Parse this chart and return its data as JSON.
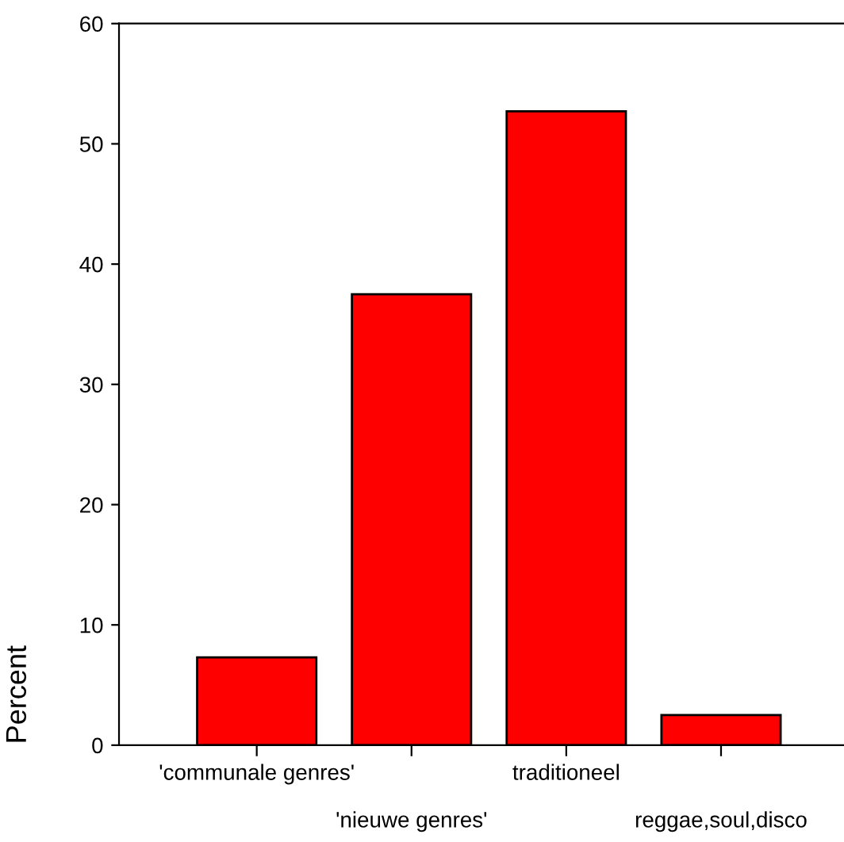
{
  "chart_data": {
    "type": "bar",
    "categories": [
      "'communale genres'",
      "'nieuwe genres'",
      "traditioneel",
      "reggae,soul,disco"
    ],
    "values": [
      7.3,
      37.5,
      52.7,
      2.5
    ],
    "color": "#ff0000",
    "ylim": [
      0,
      60
    ],
    "yticks": [
      0,
      10,
      20,
      30,
      40,
      50,
      60
    ],
    "ylabel": "Percent",
    "grid": false,
    "legend": false
  }
}
